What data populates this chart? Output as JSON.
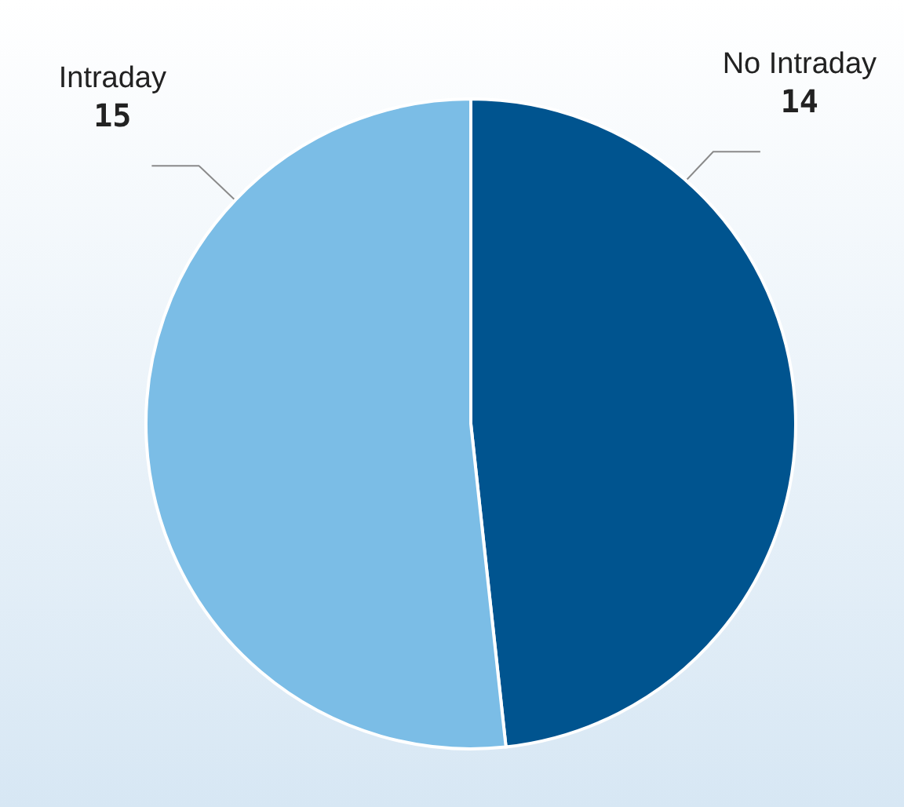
{
  "chart_data": {
    "type": "pie",
    "categories": [
      "No Intraday",
      "Intraday"
    ],
    "values": [
      14,
      15
    ],
    "colors": [
      "#00548f",
      "#7bbde6"
    ],
    "data_labels": true
  }
}
